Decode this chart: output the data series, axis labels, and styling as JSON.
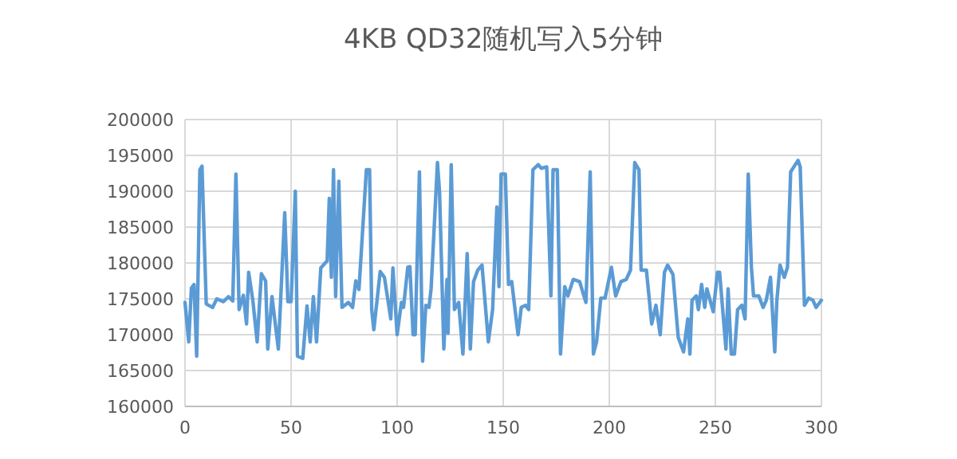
{
  "chart_data": {
    "type": "line",
    "title": "4KB QD32随机写入5分钟",
    "x": [
      0,
      1.75,
      3,
      4.25,
      5.5,
      7,
      8,
      10,
      13,
      15,
      18,
      20.5,
      22.5,
      24,
      25.5,
      27.5,
      29,
      30,
      32,
      34,
      36,
      38,
      39,
      41,
      44,
      47,
      48.5,
      50,
      52,
      53,
      55.5,
      57.5,
      59,
      60.5,
      62,
      64,
      67,
      68,
      69,
      70,
      71,
      72.5,
      74,
      77,
      79,
      80.5,
      82,
      85.5,
      87,
      88,
      89,
      92,
      94,
      97,
      98,
      100,
      102,
      103,
      105,
      106,
      107.5,
      108.5,
      110.5,
      112,
      113.5,
      115,
      116,
      119,
      120,
      122,
      123.5,
      124,
      125.5,
      127,
      129,
      131,
      133,
      134.5,
      136,
      138,
      140,
      143,
      145,
      147,
      148,
      149,
      151,
      152.5,
      154,
      157,
      158.5,
      160.5,
      162,
      164,
      166.5,
      168,
      170.5,
      172.5,
      173.5,
      175.5,
      177,
      179,
      180.5,
      183,
      186,
      189,
      191,
      192.5,
      194,
      196,
      198,
      201,
      203,
      205.5,
      208,
      210,
      212,
      214,
      215,
      217.5,
      220,
      222,
      224,
      226,
      227.5,
      230,
      232.5,
      235,
      237,
      238,
      239,
      241,
      242,
      243.5,
      245,
      246,
      249,
      251,
      252,
      255,
      256,
      257.5,
      259,
      260.5,
      262.5,
      264,
      265.5,
      267,
      268,
      270.5,
      272.5,
      274,
      276,
      278,
      279,
      280.5,
      282.5,
      284,
      285.5,
      287,
      289,
      290,
      292,
      294,
      296,
      297.5,
      300
    ],
    "values": [
      174500,
      169000,
      176500,
      177000,
      167000,
      193000,
      193500,
      174300,
      173800,
      175000,
      174600,
      175300,
      174700,
      192400,
      173500,
      175500,
      171500,
      178700,
      174700,
      169000,
      178500,
      177500,
      168000,
      175300,
      168000,
      187000,
      174600,
      174600,
      190000,
      167000,
      166700,
      174000,
      169000,
      175300,
      169000,
      179300,
      180300,
      189000,
      178000,
      193000,
      175300,
      191400,
      173800,
      174500,
      173800,
      177500,
      176300,
      193000,
      193000,
      173500,
      170700,
      178800,
      178000,
      172200,
      179300,
      170000,
      174500,
      173800,
      179400,
      179500,
      170000,
      170000,
      192700,
      166300,
      174100,
      173800,
      176400,
      194000,
      189800,
      168000,
      177700,
      170200,
      193700,
      173500,
      174500,
      167300,
      181300,
      168000,
      177400,
      179000,
      179700,
      169000,
      173500,
      187800,
      176700,
      192400,
      192400,
      177000,
      177400,
      170000,
      173800,
      174100,
      173500,
      193000,
      193700,
      193200,
      193400,
      175400,
      193000,
      193000,
      167300,
      176700,
      175400,
      177700,
      177400,
      174500,
      192700,
      167300,
      169000,
      175100,
      175100,
      179400,
      175400,
      177400,
      177700,
      179000,
      194000,
      193000,
      179000,
      179000,
      171500,
      174100,
      170000,
      178700,
      179700,
      178400,
      169600,
      167600,
      172200,
      167300,
      174800,
      175400,
      173500,
      177000,
      173800,
      176400,
      173200,
      178700,
      178700,
      168000,
      176400,
      167300,
      167300,
      173500,
      174100,
      172200,
      192400,
      179400,
      175400,
      175400,
      173800,
      174800,
      178000,
      167600,
      174800,
      179700,
      178000,
      179400,
      192700,
      193400,
      194300,
      193400,
      174100,
      175100,
      174800,
      173800,
      174800
    ],
    "color": "#5b9bd5",
    "xlim": [
      0,
      300
    ],
    "xticks": [
      0,
      50,
      100,
      150,
      200,
      250,
      300
    ],
    "ylim": [
      160000,
      200000
    ],
    "yticks": [
      160000,
      165000,
      170000,
      175000,
      180000,
      185000,
      190000,
      195000,
      200000
    ],
    "grid": true
  }
}
